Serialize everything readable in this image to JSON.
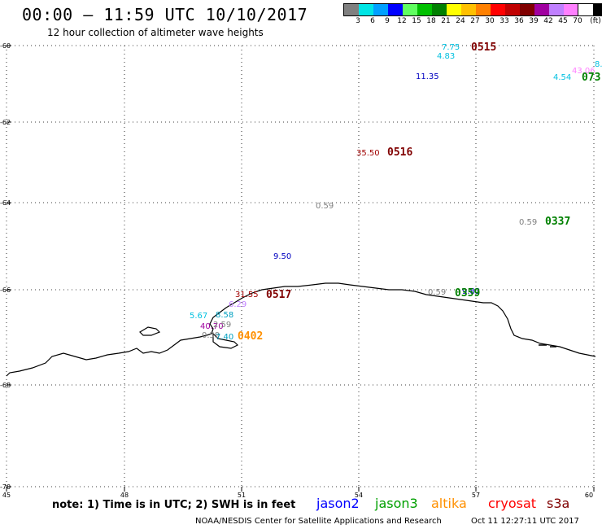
{
  "header": {
    "title": "00:00 – 11:59 UTC 10/10/2017",
    "subtitle": "12 hour collection of altimeter wave heights"
  },
  "colorbar": {
    "colors": [
      "#808080",
      "#00e5e5",
      "#00a0ff",
      "#0000ff",
      "#60ff60",
      "#00c000",
      "#008000",
      "#ffff00",
      "#ffc000",
      "#ff8000",
      "#ff0000",
      "#c00000",
      "#800000",
      "#a000a0",
      "#c080ff",
      "#ff80ff",
      "#ffffff",
      "#000000"
    ],
    "labels": [
      "3",
      "6",
      "9",
      "12",
      "15",
      "18",
      "21",
      "24",
      "27",
      "30",
      "33",
      "36",
      "39",
      "42",
      "45",
      "70",
      "(ft)"
    ]
  },
  "axes": {
    "lat_ticks": [
      "-60",
      "-62",
      "-64",
      "-66",
      "-68",
      "-70"
    ],
    "lon_ticks": [
      "45",
      "48",
      "51",
      "54",
      "57",
      "60"
    ],
    "grid": "dotted"
  },
  "wave_labels": [
    {
      "text": "7.75",
      "color": "#00c0e0"
    },
    {
      "text": "4.83",
      "color": "#00c0e0"
    },
    {
      "text": "11.35",
      "color": "#0000c0"
    },
    {
      "text": "43.06",
      "color": "#ff80ff"
    },
    {
      "text": "4.54",
      "color": "#00c0e0"
    },
    {
      "text": "8.",
      "color": "#00c0e0"
    },
    {
      "text": "35.50",
      "color": "#a00000"
    },
    {
      "text": "0.59",
      "color": "#808080"
    },
    {
      "text": "0.59",
      "color": "#808080"
    },
    {
      "text": "9.50",
      "color": "#0000c0"
    },
    {
      "text": "0.59",
      "color": "#808080"
    },
    {
      "text": "9.83",
      "color": "#0000c0"
    },
    {
      "text": "31.55",
      "color": "#a00000"
    },
    {
      "text": "6.29",
      "color": "#c080ff"
    },
    {
      "text": "5.67",
      "color": "#00c0e0"
    },
    {
      "text": "8.58",
      "color": "#00a0c0"
    },
    {
      "text": "40.70",
      "color": "#a000a0"
    },
    {
      "text": "2.59",
      "color": "#808080"
    },
    {
      "text": "0.59",
      "color": "#808080"
    },
    {
      "text": "7.40",
      "color": "#00a0c0"
    },
    {
      "text": "00",
      "color": "#808080"
    }
  ],
  "pass_labels": [
    {
      "text": "0515",
      "color": "#800000"
    },
    {
      "text": "073",
      "color": "#008000"
    },
    {
      "text": "0516",
      "color": "#800000"
    },
    {
      "text": "0337",
      "color": "#008000"
    },
    {
      "text": "0517",
      "color": "#800000"
    },
    {
      "text": "0359",
      "color": "#008000"
    },
    {
      "text": "0402",
      "color": "#ff9000"
    }
  ],
  "footer": {
    "note": "note: 1) Time is in UTC; 2) SWH is in feet",
    "satellites": [
      {
        "name": "jason2",
        "color": "#0000ff"
      },
      {
        "name": "jason3",
        "color": "#00a000"
      },
      {
        "name": "altika",
        "color": "#ff9000"
      },
      {
        "name": "cryosat",
        "color": "#ff0000"
      },
      {
        "name": "s3a",
        "color": "#800000"
      }
    ],
    "credit": "NOAA/NESDIS Center for Satellite Applications and Research",
    "timestamp": "Oct 11 12:27:11 UTC 2017"
  }
}
